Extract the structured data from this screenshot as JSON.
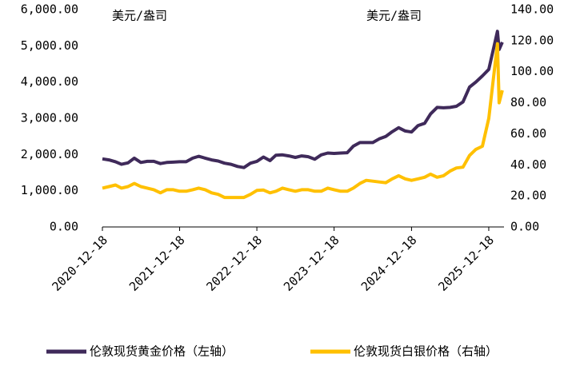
{
  "chart_data": {
    "type": "line",
    "y_label": "美元/盎司",
    "y2_label": "美元/盎司",
    "x": [
      "2020-12-18",
      "2021-01-18",
      "2021-02-18",
      "2021-03-18",
      "2021-04-18",
      "2021-05-18",
      "2021-06-18",
      "2021-07-18",
      "2021-08-18",
      "2021-09-18",
      "2021-10-18",
      "2021-11-18",
      "2021-12-18",
      "2022-01-18",
      "2022-02-18",
      "2022-03-18",
      "2022-04-18",
      "2022-05-18",
      "2022-06-18",
      "2022-07-18",
      "2022-08-18",
      "2022-09-18",
      "2022-10-18",
      "2022-11-18",
      "2022-12-18",
      "2023-01-18",
      "2023-02-18",
      "2023-03-18",
      "2023-04-18",
      "2023-05-18",
      "2023-06-18",
      "2023-07-18",
      "2023-08-18",
      "2023-09-18",
      "2023-10-18",
      "2023-11-18",
      "2023-12-18",
      "2024-01-18",
      "2024-02-18",
      "2024-03-18",
      "2024-04-18",
      "2024-05-18",
      "2024-06-18",
      "2024-07-18",
      "2024-08-18",
      "2024-09-18",
      "2024-10-18",
      "2024-11-18",
      "2024-12-18",
      "2025-01-18",
      "2025-02-18",
      "2025-03-18",
      "2025-04-18",
      "2025-05-18",
      "2025-06-18",
      "2025-07-18",
      "2025-08-18",
      "2025-09-18",
      "2025-10-18",
      "2025-11-18",
      "2025-12-18",
      "2026-01-28",
      "2026-02-05",
      "2026-02-20"
    ],
    "series": [
      {
        "name": "伦敦现货黄金价格（左轴）",
        "color": "#3f2a5a",
        "axis": "y",
        "values": [
          1880,
          1850,
          1800,
          1730,
          1770,
          1900,
          1780,
          1810,
          1810,
          1750,
          1780,
          1790,
          1800,
          1800,
          1900,
          1950,
          1900,
          1850,
          1820,
          1760,
          1730,
          1670,
          1640,
          1760,
          1810,
          1930,
          1830,
          1980,
          1990,
          1960,
          1920,
          1960,
          1940,
          1870,
          1990,
          2040,
          2030,
          2040,
          2050,
          2230,
          2330,
          2330,
          2330,
          2430,
          2500,
          2630,
          2740,
          2650,
          2620,
          2800,
          2860,
          3120,
          3300,
          3290,
          3300,
          3330,
          3450,
          3860,
          4000,
          4170,
          4350,
          5400,
          4900,
          5100
        ]
      },
      {
        "name": "伦敦现货白银价格（右轴）",
        "color": "#ffc000",
        "axis": "y2",
        "values": [
          25,
          26,
          27,
          25,
          26,
          28,
          26,
          25,
          24,
          22,
          24,
          24,
          23,
          23,
          24,
          25,
          24,
          22,
          21,
          19,
          19,
          19,
          19,
          21,
          23.5,
          23.8,
          22,
          23,
          25,
          24,
          23,
          24,
          24,
          23,
          23,
          25,
          24,
          23,
          23,
          25,
          28,
          30,
          29.5,
          29,
          28.5,
          31,
          33,
          31,
          30,
          31,
          32,
          34,
          32,
          33,
          36,
          38,
          38.5,
          46,
          50,
          52,
          70,
          118,
          80,
          88
        ]
      }
    ],
    "xlim": [
      "2020-12-18",
      "2026-02-28"
    ],
    "xticks": [
      "2020-12-18",
      "2021-12-18",
      "2022-12-18",
      "2023-12-18",
      "2024-12-18",
      "2025-12-18"
    ],
    "ylim": [
      0,
      6000
    ],
    "yticks": [
      {
        "value": 0,
        "label": "0.00"
      },
      {
        "value": 1000,
        "label": "1,000.00"
      },
      {
        "value": 2000,
        "label": "2,000.00"
      },
      {
        "value": 3000,
        "label": "3,000.00"
      },
      {
        "value": 4000,
        "label": "4,000.00"
      },
      {
        "value": 5000,
        "label": "5,000.00"
      },
      {
        "value": 6000,
        "label": "6,000.00"
      }
    ],
    "y2lim": [
      0,
      140
    ],
    "y2ticks": [
      {
        "value": 0,
        "label": "0.00"
      },
      {
        "value": 20,
        "label": "20.00"
      },
      {
        "value": 40,
        "label": "40.00"
      },
      {
        "value": 60,
        "label": "60.00"
      },
      {
        "value": 80,
        "label": "80.00"
      },
      {
        "value": 100,
        "label": "100.00"
      },
      {
        "value": 120,
        "label": "120.00"
      },
      {
        "value": 140,
        "label": "140.00"
      }
    ]
  }
}
